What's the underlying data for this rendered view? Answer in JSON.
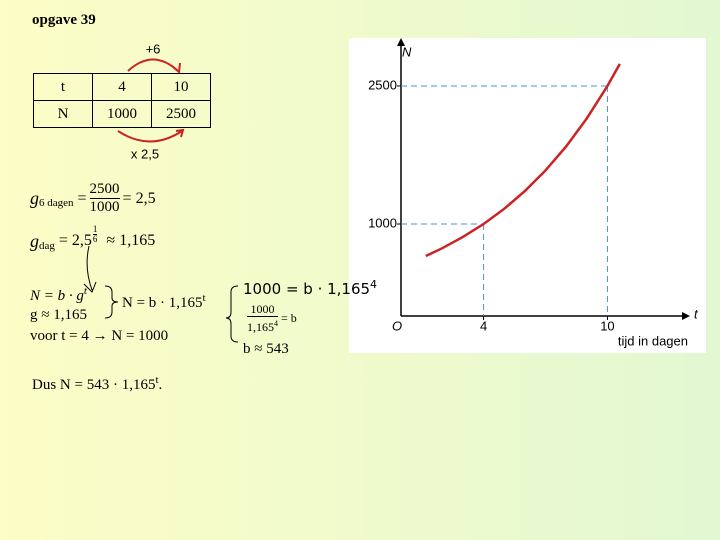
{
  "title": "opgave 39",
  "table": {
    "top_arrow": "+6",
    "bottom_arrow": "x 2,5",
    "rows": [
      [
        "t",
        "4",
        "10"
      ],
      [
        "N",
        "1000",
        "2500"
      ]
    ]
  },
  "g6": {
    "g": "g",
    "sub": "6 dagen",
    "eq": "=",
    "num": "2500",
    "den": "1000",
    "result": "= 2,5"
  },
  "gdag": {
    "g": "g",
    "sub": "dag",
    "base": "= 2,5",
    "exp_num": "1",
    "exp_den": "6",
    "result": "≈ 1,165"
  },
  "system": {
    "line1": {
      "text": "N = b · g",
      "sup": "t"
    },
    "line2": "g ≈ 1,165",
    "line3": "voor t = 4 → N = 1000",
    "result": {
      "text": "N = b · 1,165",
      "sup": "t"
    }
  },
  "solve": {
    "line1": {
      "text": "1000 = b · 1,165",
      "sup": "4"
    },
    "frac_num": "1000",
    "frac_den": {
      "text": "1,165",
      "sup": "4"
    },
    "frac_rhs": "= b",
    "result": "b ≈ 543"
  },
  "conclusion": {
    "text": "Dus N = 543 · 1,165",
    "sup": "t",
    "end": "."
  },
  "graph": {
    "y_label": "N",
    "x_label": "t",
    "origin": "O",
    "x_caption": "tijd in dagen",
    "xlim": [
      0,
      14
    ],
    "ylim": [
      0,
      3000
    ],
    "xticks": [
      4,
      10
    ],
    "yticks": [
      1000,
      2500
    ],
    "color": "#cc2222",
    "curve": {
      "x": [
        1.2,
        2,
        3,
        4,
        5,
        6,
        7,
        8,
        9,
        10,
        10.6
      ],
      "y": [
        652,
        737,
        859,
        1000,
        1165,
        1358,
        1582,
        1843,
        2147,
        2500,
        2741
      ]
    }
  }
}
